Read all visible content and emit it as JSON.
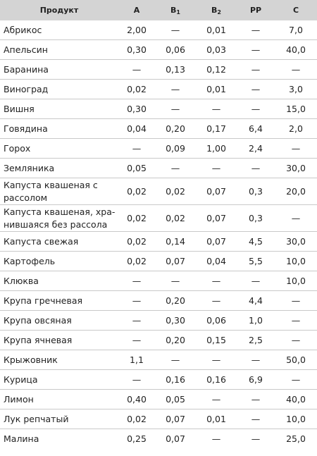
{
  "headers": {
    "product": "Продукт",
    "a": "A",
    "b1_main": "B",
    "b1_sub": "1",
    "b2_main": "B",
    "b2_sub": "2",
    "pp": "PP",
    "c": "C"
  },
  "rows": [
    {
      "name": "Абрикос",
      "a": "2,00",
      "b1": "—",
      "b2": "0,01",
      "pp": "—",
      "c": "7,0"
    },
    {
      "name": "Апельсин",
      "a": "0,30",
      "b1": "0,06",
      "b2": "0,03",
      "pp": "—",
      "c": "40,0"
    },
    {
      "name": "Баранина",
      "a": "—",
      "b1": "0,13",
      "b2": "0,12",
      "pp": "—",
      "c": "—"
    },
    {
      "name": "Виноград",
      "a": "0,02",
      "b1": "—",
      "b2": "0,01",
      "pp": "—",
      "c": "3,0"
    },
    {
      "name": "Вишня",
      "a": "0,30",
      "b1": "—",
      "b2": "—",
      "pp": "—",
      "c": "15,0"
    },
    {
      "name": "Говядина",
      "a": "0,04",
      "b1": "0,20",
      "b2": "0,17",
      "pp": "6,4",
      "c": "2,0"
    },
    {
      "name": "Горох",
      "a": "—",
      "b1": "0,09",
      "b2": "1,00",
      "pp": "2,4",
      "c": "—"
    },
    {
      "name": "Земляника",
      "a": "0,05",
      "b1": "—",
      "b2": "—",
      "pp": "—",
      "c": "30,0"
    },
    {
      "name": "Капуста квашеная с рас­солом",
      "a": "0,02",
      "b1": "0,02",
      "b2": "0,07",
      "pp": "0,3",
      "c": "20,0"
    },
    {
      "name": "Капуста квашеная, хра­нившаяся без рассола",
      "a": "0,02",
      "b1": "0,02",
      "b2": "0,07",
      "pp": "0,3",
      "c": "—"
    },
    {
      "name": "Капуста свежая",
      "a": "0,02",
      "b1": "0,14",
      "b2": "0,07",
      "pp": "4,5",
      "c": "30,0"
    },
    {
      "name": "Картофель",
      "a": "0,02",
      "b1": "0,07",
      "b2": "0,04",
      "pp": "5,5",
      "c": "10,0"
    },
    {
      "name": "Клюква",
      "a": "—",
      "b1": "—",
      "b2": "—",
      "pp": "—",
      "c": "10,0"
    },
    {
      "name": "Крупа гречневая",
      "a": "—",
      "b1": "0,20",
      "b2": "—",
      "pp": "4,4",
      "c": "—"
    },
    {
      "name": "Крупа овсяная",
      "a": "—",
      "b1": "0,30",
      "b2": "0,06",
      "pp": "1,0",
      "c": "—"
    },
    {
      "name": "Крупа ячневая",
      "a": "—",
      "b1": "0,20",
      "b2": "0,15",
      "pp": "2,5",
      "c": "—"
    },
    {
      "name": "Крыжовник",
      "a": "1,1",
      "b1": "—",
      "b2": "—",
      "pp": "—",
      "c": "50,0"
    },
    {
      "name": "Курица",
      "a": "—",
      "b1": "0,16",
      "b2": "0,16",
      "pp": "6,9",
      "c": "—"
    },
    {
      "name": "Лимон",
      "a": "0,40",
      "b1": "0,05",
      "b2": "—",
      "pp": "—",
      "c": "40,0"
    },
    {
      "name": "Лук репчатый",
      "a": "0,02",
      "b1": "0,07",
      "b2": "0,01",
      "pp": "—",
      "c": "10,0"
    },
    {
      "name": "Малина",
      "a": "0,25",
      "b1": "0,07",
      "b2": "—",
      "pp": "—",
      "c": "25,0"
    }
  ]
}
